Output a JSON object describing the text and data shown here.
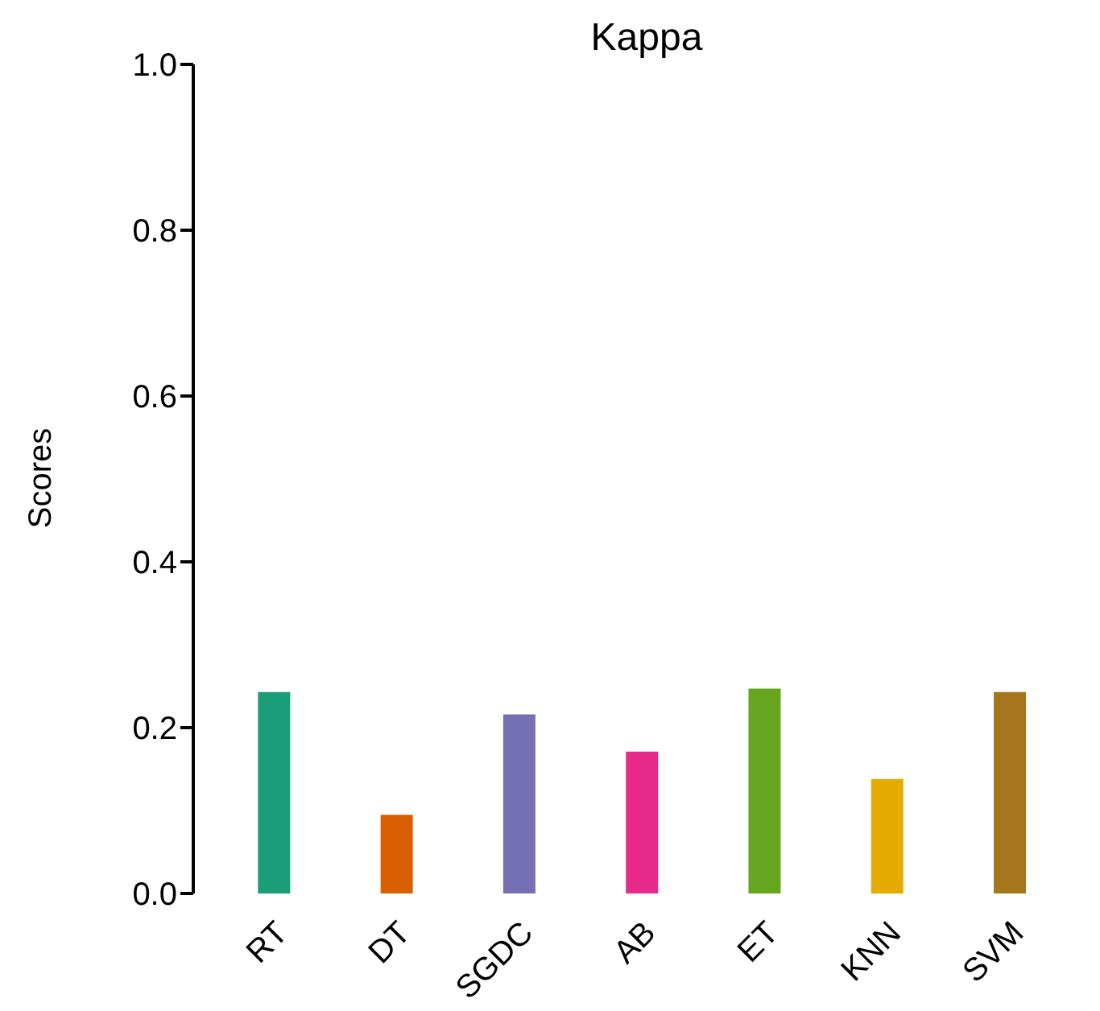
{
  "chart_data": {
    "type": "bar",
    "title": "Kappa",
    "ylabel": "Scores",
    "categories": [
      "RT",
      "DT",
      "SGDC",
      "AB",
      "ET",
      "KNN",
      "SVM"
    ],
    "values": [
      0.243,
      0.095,
      0.216,
      0.171,
      0.247,
      0.138,
      0.243
    ],
    "colors": [
      "#1b9e77",
      "#d95f02",
      "#7570b3",
      "#e7298a",
      "#66a61e",
      "#e6ab02",
      "#a6761d"
    ],
    "ylim": [
      0,
      1
    ],
    "yticks": [
      {
        "value": 0,
        "label": "0.0"
      },
      {
        "value": 0.2,
        "label": "0.2"
      },
      {
        "value": 0.4,
        "label": "0.4"
      },
      {
        "value": 0.6,
        "label": "0.6"
      },
      {
        "value": 0.8,
        "label": "0.8"
      },
      {
        "value": 1,
        "label": "1.0"
      }
    ],
    "grid": false,
    "legend": false
  }
}
